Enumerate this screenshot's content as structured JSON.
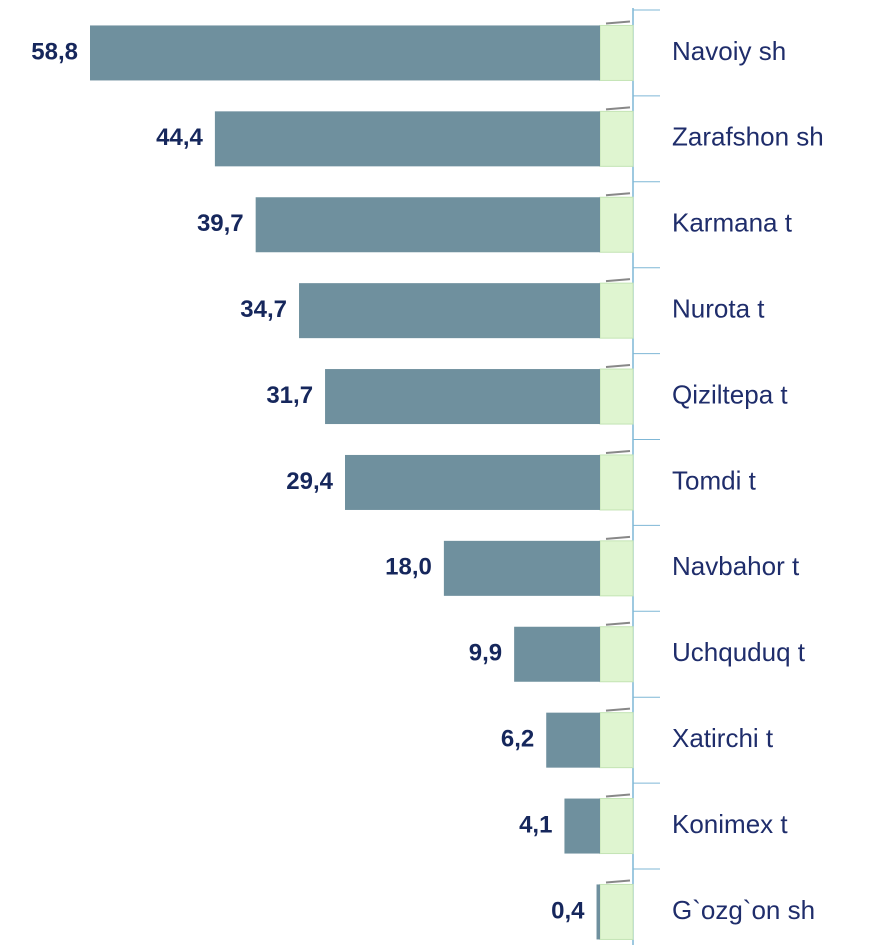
{
  "chart_data": {
    "type": "bar",
    "orientation": "horizontal",
    "categories": [
      "Navoiy sh",
      "Zarafshon sh",
      "Karmana t",
      "Nurota t",
      "Qiziltepa t",
      "Tomdi t",
      "Navbahor t",
      "Uchquduq t",
      "Xatirchi t",
      "Konimex t",
      "G`ozg`on sh"
    ],
    "values": [
      58.8,
      44.4,
      39.7,
      34.7,
      31.7,
      29.4,
      18.0,
      9.9,
      6.2,
      4.1,
      0.4
    ],
    "value_labels": [
      "58,8",
      "44,4",
      "39,7",
      "34,7",
      "31,7",
      "29,4",
      "18,0",
      "9,9",
      "6,2",
      "4,1",
      "0,4"
    ],
    "color": "#6f909e"
  }
}
